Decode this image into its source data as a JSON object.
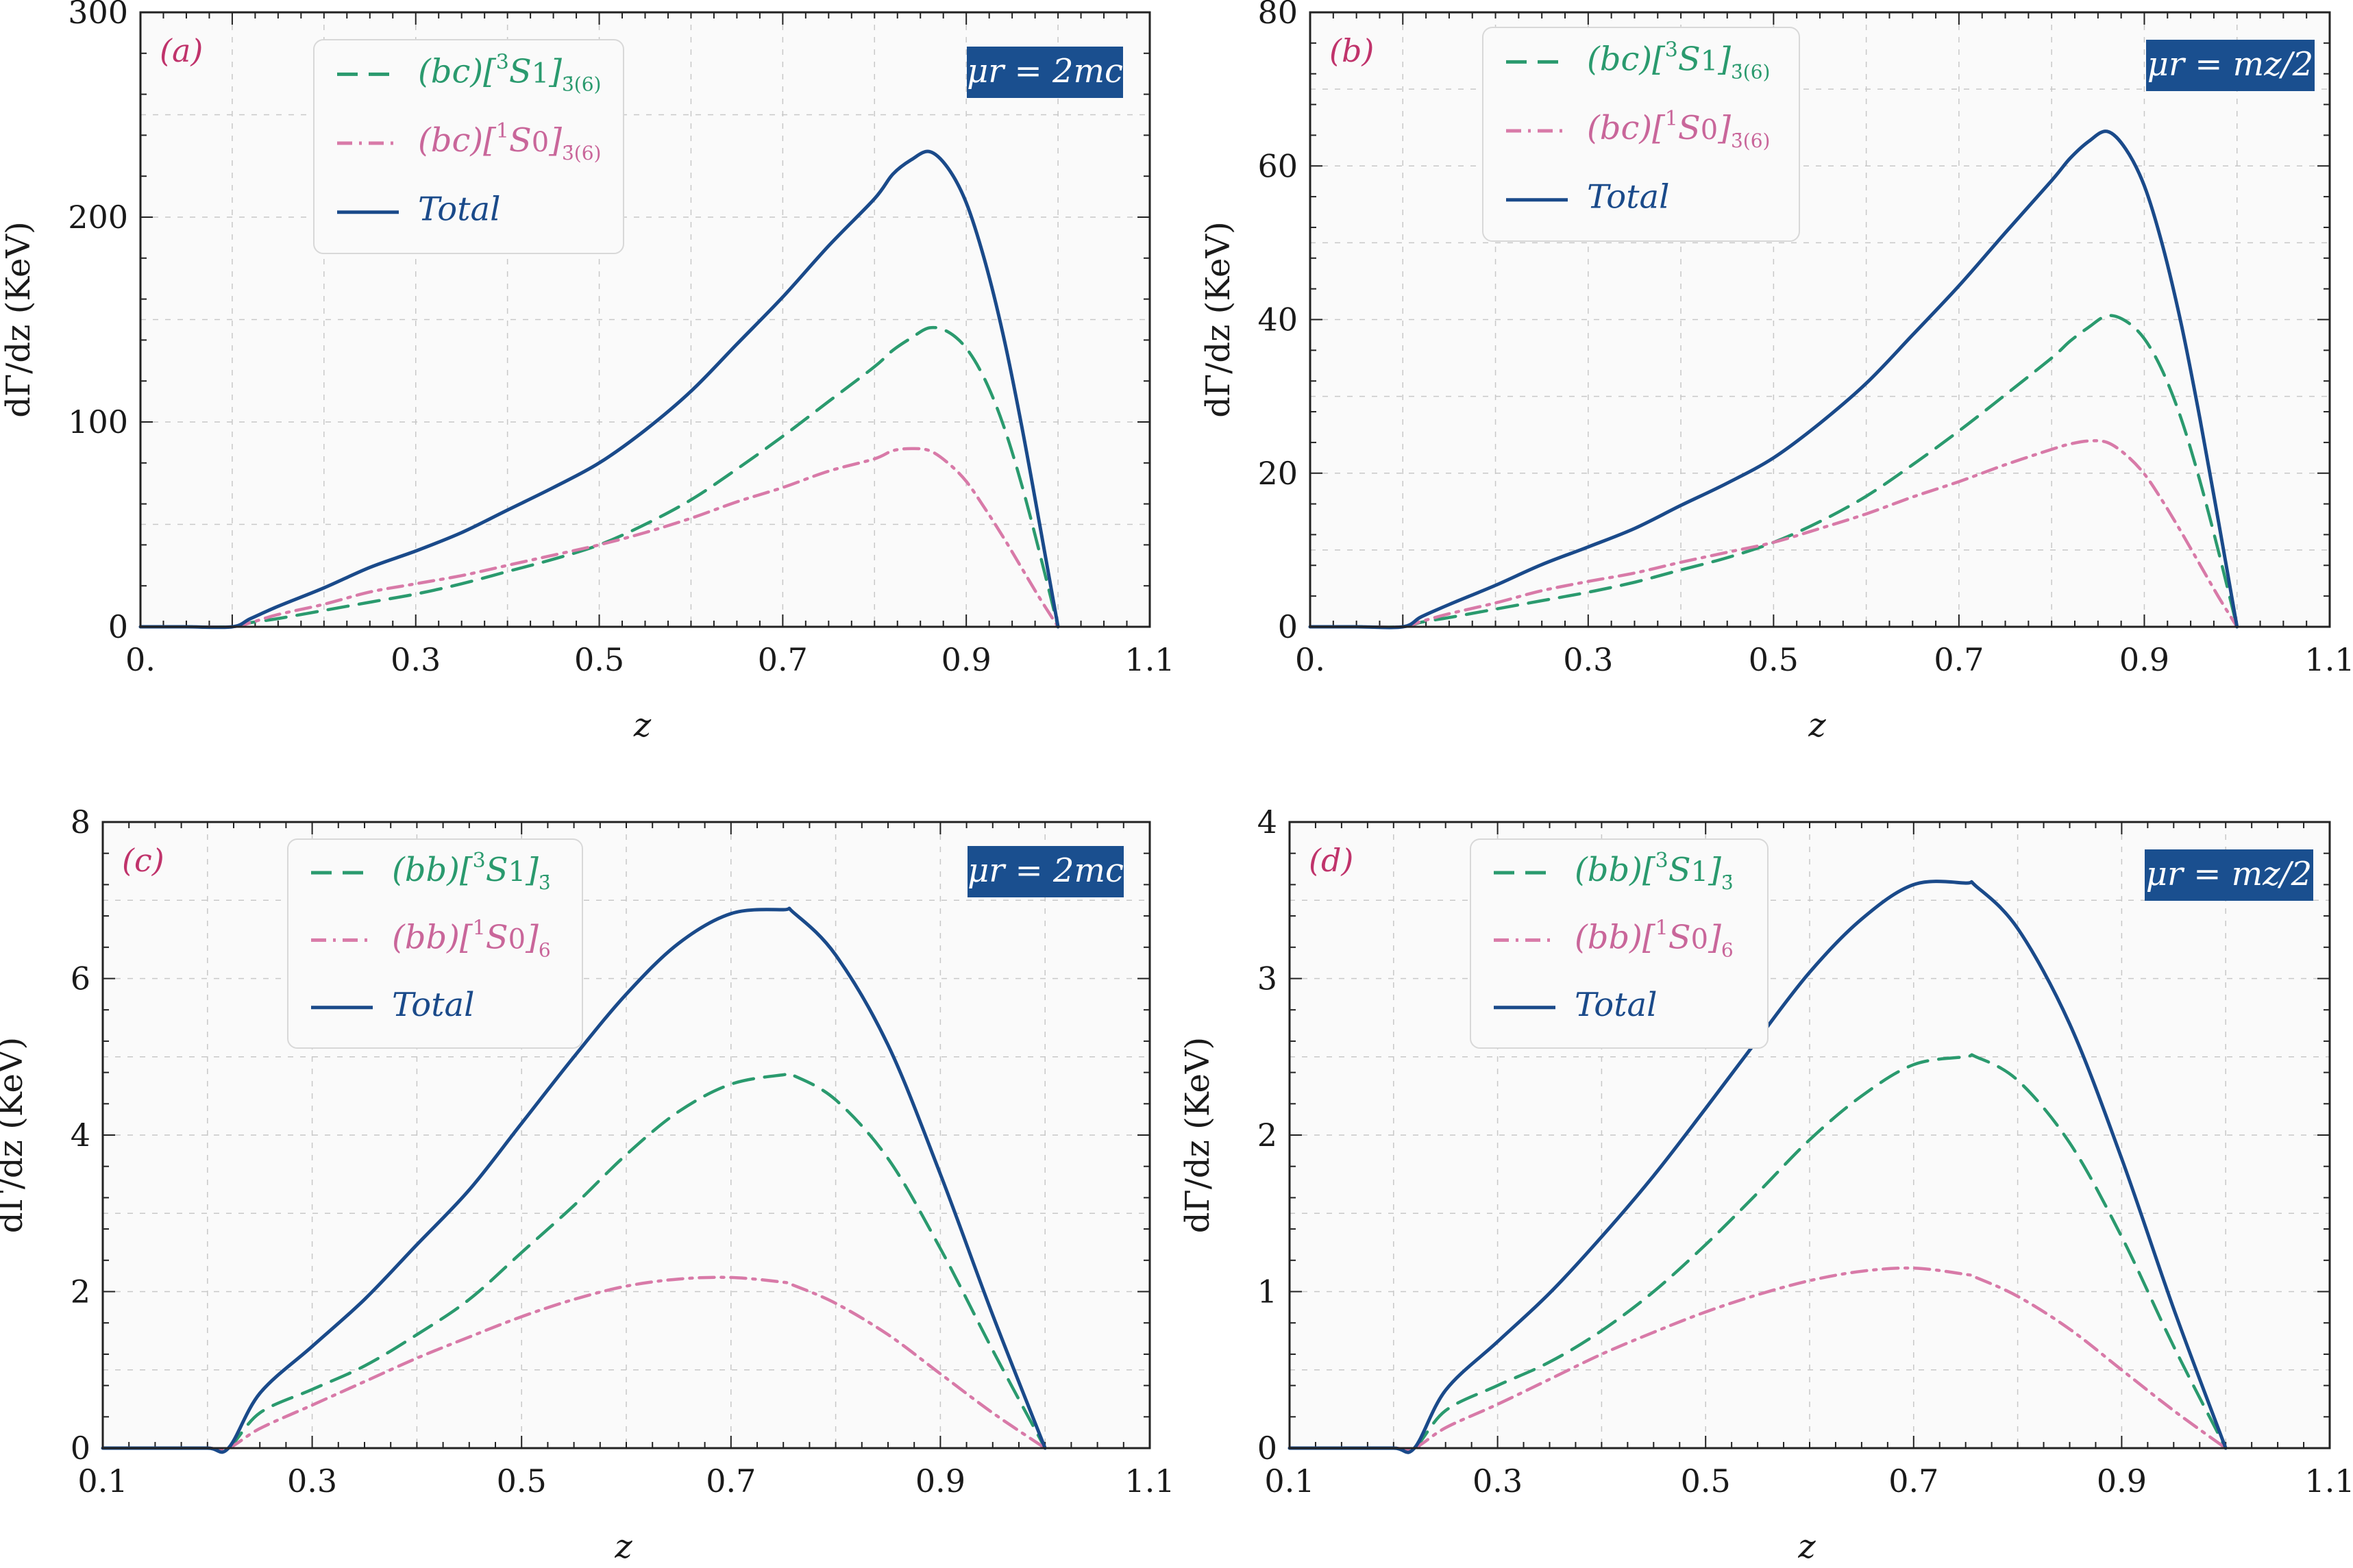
{
  "chart_data": [
    {
      "type": "line",
      "panel": "(a)",
      "scale": "μr = 2mc",
      "xlabel": "z",
      "ylabel": "dΓ/dz (KeV)",
      "xlim": [
        0.0,
        1.1
      ],
      "ylim": [
        0,
        300
      ],
      "xticks": [
        0.0,
        0.3,
        0.5,
        0.7,
        0.9,
        1.1
      ],
      "xtick_labels": [
        "0.",
        "0.3",
        "0.5",
        "0.7",
        "0.9",
        "1.1"
      ],
      "yticks": [
        0,
        100,
        200,
        300
      ],
      "ytick_labels": [
        "0",
        "100",
        "200",
        "300"
      ],
      "grid": true,
      "legend_position": "top-left",
      "x": [
        0.0,
        0.05,
        0.1,
        0.12,
        0.15,
        0.2,
        0.25,
        0.3,
        0.35,
        0.4,
        0.45,
        0.5,
        0.55,
        0.6,
        0.65,
        0.7,
        0.75,
        0.8,
        0.82,
        0.84,
        0.86,
        0.88,
        0.9,
        0.92,
        0.94,
        0.96,
        0.98,
        1.0
      ],
      "series": [
        {
          "name": "(bc)[3S1]3̄(6)",
          "style": "dashed",
          "color": "#2a9a6e",
          "values": [
            0,
            0,
            0,
            2,
            4,
            8,
            12,
            16,
            21,
            27,
            33,
            40,
            50,
            62,
            77,
            93,
            110,
            127,
            135,
            141,
            146,
            144,
            136,
            121,
            99,
            70,
            36,
            0
          ]
        },
        {
          "name": "(bc)[1S0]3̄(6)",
          "style": "dashdot",
          "color": "#d87aa8",
          "values": [
            0,
            0,
            0,
            2,
            6,
            11,
            17,
            21,
            25,
            30,
            35,
            40,
            46,
            53,
            61,
            68,
            76,
            82,
            86,
            87,
            86,
            80,
            71,
            58,
            44,
            29,
            14,
            0
          ]
        },
        {
          "name": "Total",
          "style": "solid",
          "color": "#1a4a8a",
          "values": [
            0,
            0,
            0,
            4,
            10,
            19,
            29,
            37,
            46,
            57,
            68,
            80,
            96,
            115,
            138,
            161,
            186,
            209,
            221,
            228,
            232,
            224,
            207,
            179,
            143,
            99,
            50,
            0
          ]
        }
      ]
    },
    {
      "type": "line",
      "panel": "(b)",
      "scale": "μr = mz/2",
      "xlabel": "z",
      "ylabel": "dΓ/dz (KeV)",
      "xlim": [
        0.0,
        1.1
      ],
      "ylim": [
        0,
        80
      ],
      "xticks": [
        0.0,
        0.3,
        0.5,
        0.7,
        0.9,
        1.1
      ],
      "xtick_labels": [
        "0.",
        "0.3",
        "0.5",
        "0.7",
        "0.9",
        "1.1"
      ],
      "yticks": [
        0,
        20,
        40,
        60,
        80
      ],
      "ytick_labels": [
        "0",
        "20",
        "40",
        "60",
        "80"
      ],
      "grid": true,
      "legend_position": "top-center",
      "x": [
        0.0,
        0.05,
        0.1,
        0.12,
        0.15,
        0.2,
        0.25,
        0.3,
        0.35,
        0.4,
        0.45,
        0.5,
        0.55,
        0.6,
        0.65,
        0.7,
        0.75,
        0.8,
        0.82,
        0.84,
        0.86,
        0.88,
        0.9,
        0.92,
        0.94,
        0.96,
        0.98,
        1.0
      ],
      "series": [
        {
          "name": "(bc)[3S1]3̄(6)",
          "style": "dashed",
          "color": "#2a9a6e",
          "values": [
            0,
            0,
            0,
            0.6,
            1.2,
            2.3,
            3.4,
            4.5,
            5.8,
            7.4,
            9.0,
            11.0,
            13.7,
            17.0,
            21.1,
            25.5,
            30.2,
            35.0,
            37.2,
            39.0,
            40.5,
            39.8,
            37.5,
            33.2,
            27.0,
            19.0,
            9.8,
            0
          ]
        },
        {
          "name": "(bc)[1S0]3̄(6)",
          "style": "dashdot",
          "color": "#d87aa8",
          "values": [
            0,
            0,
            0,
            0.7,
            1.7,
            3.1,
            4.7,
            5.9,
            7.0,
            8.4,
            9.7,
            11.0,
            12.8,
            14.7,
            16.9,
            18.9,
            21.1,
            23.1,
            23.8,
            24.2,
            24.0,
            22.4,
            19.9,
            16.3,
            12.3,
            8.1,
            3.9,
            0
          ]
        },
        {
          "name": "Total",
          "style": "solid",
          "color": "#1a4a8a",
          "values": [
            0,
            0,
            0,
            1.3,
            2.9,
            5.4,
            8.1,
            10.4,
            12.8,
            15.8,
            18.7,
            22.0,
            26.5,
            31.7,
            38.0,
            44.4,
            51.3,
            58.1,
            61.0,
            63.2,
            64.5,
            62.2,
            57.4,
            49.5,
            39.3,
            27.1,
            13.7,
            0
          ]
        }
      ]
    },
    {
      "type": "line",
      "panel": "(c)",
      "scale": "μr = 2mc",
      "xlabel": "z",
      "ylabel": "dΓ/dz (KeV)",
      "xlim": [
        0.1,
        1.1
      ],
      "ylim": [
        0,
        8
      ],
      "xticks": [
        0.1,
        0.3,
        0.5,
        0.7,
        0.9,
        1.1
      ],
      "xtick_labels": [
        "0.1",
        "0.3",
        "0.5",
        "0.7",
        "0.9",
        "1.1"
      ],
      "yticks": [
        0,
        2,
        4,
        6,
        8
      ],
      "ytick_labels": [
        "0",
        "2",
        "4",
        "6",
        "8"
      ],
      "grid": true,
      "legend_position": "top-left",
      "x": [
        0.1,
        0.15,
        0.2,
        0.22,
        0.25,
        0.3,
        0.35,
        0.4,
        0.45,
        0.5,
        0.55,
        0.6,
        0.65,
        0.7,
        0.75,
        0.76,
        0.8,
        0.85,
        0.9,
        0.95,
        1.0
      ],
      "series": [
        {
          "name": "(bb)[3S1]3̄",
          "style": "dashed",
          "color": "#2a9a6e",
          "values": [
            0,
            0,
            0,
            0,
            0.45,
            0.75,
            1.05,
            1.45,
            1.9,
            2.5,
            3.1,
            3.75,
            4.3,
            4.65,
            4.77,
            4.76,
            4.45,
            3.7,
            2.55,
            1.25,
            0
          ]
        },
        {
          "name": "(bb)[1S0]6",
          "style": "dashdot",
          "color": "#d87aa8",
          "values": [
            0,
            0,
            0,
            0,
            0.25,
            0.55,
            0.85,
            1.15,
            1.42,
            1.68,
            1.9,
            2.07,
            2.16,
            2.18,
            2.12,
            2.08,
            1.85,
            1.45,
            0.95,
            0.45,
            0
          ]
        },
        {
          "name": "Total",
          "style": "solid",
          "color": "#1a4a8a",
          "values": [
            0,
            0,
            0,
            0,
            0.7,
            1.3,
            1.9,
            2.6,
            3.3,
            4.15,
            5.0,
            5.8,
            6.45,
            6.83,
            6.88,
            6.84,
            6.3,
            5.15,
            3.5,
            1.7,
            0
          ]
        }
      ]
    },
    {
      "type": "line",
      "panel": "(d)",
      "scale": "μr = mz/2",
      "xlabel": "z",
      "ylabel": "dΓ/dz (KeV)",
      "xlim": [
        0.1,
        1.1
      ],
      "ylim": [
        0,
        4
      ],
      "xticks": [
        0.1,
        0.3,
        0.5,
        0.7,
        0.9,
        1.1
      ],
      "xtick_labels": [
        "0.1",
        "0.3",
        "0.5",
        "0.7",
        "0.9",
        "1.1"
      ],
      "yticks": [
        0,
        1,
        2,
        3,
        4
      ],
      "ytick_labels": [
        "0",
        "1",
        "2",
        "3",
        "4"
      ],
      "grid": true,
      "legend_position": "top-center",
      "x": [
        0.1,
        0.15,
        0.2,
        0.22,
        0.25,
        0.3,
        0.35,
        0.4,
        0.45,
        0.5,
        0.55,
        0.6,
        0.65,
        0.7,
        0.75,
        0.76,
        0.8,
        0.85,
        0.9,
        0.95,
        1.0
      ],
      "series": [
        {
          "name": "(bb)[3S1]3̄",
          "style": "dashed",
          "color": "#2a9a6e",
          "values": [
            0,
            0,
            0,
            0,
            0.24,
            0.4,
            0.55,
            0.75,
            1.0,
            1.3,
            1.63,
            1.97,
            2.25,
            2.45,
            2.5,
            2.5,
            2.35,
            1.95,
            1.35,
            0.65,
            0
          ]
        },
        {
          "name": "(bb)[1S0]6",
          "style": "dashdot",
          "color": "#d87aa8",
          "values": [
            0,
            0,
            0,
            0,
            0.13,
            0.28,
            0.44,
            0.6,
            0.74,
            0.87,
            0.98,
            1.07,
            1.13,
            1.15,
            1.11,
            1.09,
            0.97,
            0.76,
            0.5,
            0.24,
            0
          ]
        },
        {
          "name": "Total",
          "style": "solid",
          "color": "#1a4a8a",
          "values": [
            0,
            0,
            0,
            0,
            0.37,
            0.68,
            0.99,
            1.35,
            1.74,
            2.17,
            2.61,
            3.04,
            3.38,
            3.6,
            3.61,
            3.59,
            3.32,
            2.71,
            1.85,
            0.89,
            0
          ]
        }
      ]
    }
  ],
  "panels": [
    {
      "label": "(a)",
      "mu": "μr = 2mc",
      "legend": [
        {
          "prefix": "(bc)[",
          "sup": "3",
          "term": "S",
          "sub1": "1",
          "bracket": "]",
          "sub2": "3̄(6)"
        },
        {
          "prefix": "(bc)[",
          "sup": "1",
          "term": "S",
          "sub1": "0",
          "bracket": "]",
          "sub2": "3̄(6)"
        },
        {
          "total": "Total"
        }
      ]
    },
    {
      "label": "(b)",
      "mu": "μr = mz/2",
      "legend": [
        {
          "prefix": "(bc)[",
          "sup": "3",
          "term": "S",
          "sub1": "1",
          "bracket": "]",
          "sub2": "3̄(6)"
        },
        {
          "prefix": "(bc)[",
          "sup": "1",
          "term": "S",
          "sub1": "0",
          "bracket": "]",
          "sub2": "3̄(6)"
        },
        {
          "total": "Total"
        }
      ]
    },
    {
      "label": "(c)",
      "mu": "μr = 2mc",
      "legend": [
        {
          "prefix": "(bb)[",
          "sup": "3",
          "term": "S",
          "sub1": "1",
          "bracket": "]",
          "sub2": "3̄"
        },
        {
          "prefix": "(bb)[",
          "sup": "1",
          "term": "S",
          "sub1": "0",
          "bracket": "]",
          "sub2": "6"
        },
        {
          "total": "Total"
        }
      ]
    },
    {
      "label": "(d)",
      "mu": "μr = mz/2",
      "legend": [
        {
          "prefix": "(bb)[",
          "sup": "3",
          "term": "S",
          "sub1": "1",
          "bracket": "]",
          "sub2": "3̄"
        },
        {
          "prefix": "(bb)[",
          "sup": "1",
          "term": "S",
          "sub1": "0",
          "bracket": "]",
          "sub2": "6"
        },
        {
          "total": "Total"
        }
      ]
    }
  ],
  "colors": {
    "dashed": "#2a9a6e",
    "dashdot": "#d87aa8",
    "solid": "#1a4a8a",
    "badge": "#1a4f8f",
    "panel_label": "#c0336b"
  }
}
